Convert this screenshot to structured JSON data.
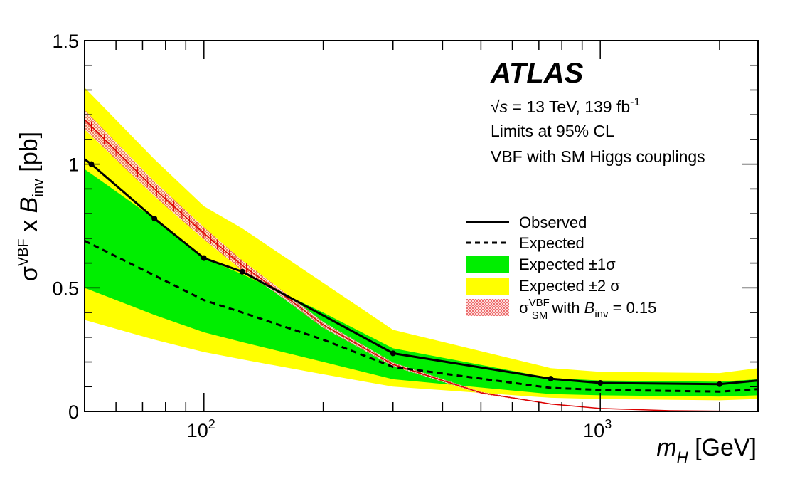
{
  "chart_data": {
    "type": "line",
    "xscale": "log",
    "xlim": [
      50,
      2500
    ],
    "ylim": [
      0,
      1.5
    ],
    "grid": false,
    "legend_position": "center-right",
    "x_tick_labels": [
      {
        "base": "10",
        "exp": "2",
        "value": 100
      },
      {
        "base": "10",
        "exp": "3",
        "value": 1000
      }
    ],
    "y_tick_labels": [
      {
        "label": "0",
        "value": 0
      },
      {
        "label": "0.5",
        "value": 0.5
      },
      {
        "label": "1",
        "value": 1
      },
      {
        "label": "1.5",
        "value": 1.5
      }
    ],
    "xlabel": {
      "var": "m",
      "sub": "H",
      "unit": " [GeV]"
    },
    "ylabel": {
      "sigma": "σ",
      "sup": "VBF",
      "times": " x ",
      "b": "B",
      "sub": "inv",
      "unit": " [pb]"
    },
    "atlas_label": "ATLAS",
    "info": {
      "sqrt": "√",
      "s": "s",
      "energy": " = 13 TeV, 139 fb",
      "energy_sup": "-1",
      "line2": "Limits at 95% CL",
      "line3": "VBF with SM Higgs couplings"
    },
    "legend": {
      "observed": "Observed",
      "expected": "Expected",
      "band1": "Expected ±1σ",
      "band2": "Expected ±2 σ",
      "sm_sigma": "σ",
      "sm_sup": "VBF",
      "sm_sub": "SM",
      "sm_with": " with ",
      "sm_b": "B",
      "sm_bsub": "inv",
      "sm_val": " = 0.15"
    },
    "colors": {
      "band1": "#00ee00",
      "band2": "#ffff00",
      "observed": "#000000",
      "expected": "#000000",
      "sm_line": "#dd0000",
      "sm_band": "#ff9999"
    },
    "series": [
      {
        "name": "Observed",
        "x": [
          50,
          52,
          75,
          100,
          125,
          300,
          750,
          1000,
          2000,
          2500
        ],
        "y": [
          1.02,
          1.0,
          0.78,
          0.62,
          0.565,
          0.235,
          0.132,
          0.115,
          0.11,
          0.125
        ]
      },
      {
        "name": "Expected",
        "x": [
          50,
          75,
          100,
          125,
          200,
          300,
          750,
          1000,
          2000,
          2500
        ],
        "y": [
          0.69,
          0.55,
          0.45,
          0.4,
          0.29,
          0.18,
          0.095,
          0.087,
          0.08,
          0.09
        ]
      },
      {
        "name": "Expected ±1σ",
        "x": [
          50,
          75,
          100,
          125,
          200,
          300,
          750,
          1000,
          2000,
          2500
        ],
        "low": [
          0.5,
          0.39,
          0.32,
          0.28,
          0.2,
          0.13,
          0.07,
          0.065,
          0.06,
          0.065
        ],
        "high": [
          0.98,
          0.78,
          0.62,
          0.555,
          0.4,
          0.255,
          0.135,
          0.125,
          0.12,
          0.13
        ]
      },
      {
        "name": "Expected ±2 σ",
        "x": [
          50,
          75,
          100,
          125,
          200,
          300,
          750,
          1000,
          2000,
          2500
        ],
        "low": [
          0.37,
          0.29,
          0.24,
          0.21,
          0.15,
          0.1,
          0.055,
          0.05,
          0.045,
          0.05
        ],
        "high": [
          1.31,
          1.02,
          0.83,
          0.74,
          0.52,
          0.33,
          0.175,
          0.16,
          0.155,
          0.175
        ]
      },
      {
        "name": "σVBF SM with Binv = 0.15",
        "x": [
          50,
          75,
          100,
          125,
          150,
          200,
          300,
          500,
          750,
          1000,
          1500,
          2000,
          2500
        ],
        "y": [
          1.18,
          0.9,
          0.72,
          0.59,
          0.5,
          0.35,
          0.19,
          0.075,
          0.03,
          0.012,
          0.003,
          0.001,
          0.0005
        ],
        "uncertainty": [
          0.04,
          0.03,
          0.025,
          0.02,
          0.015,
          0.012,
          0.008,
          0.004,
          0.002,
          0.001,
          0.0005,
          0.0002,
          0.0001
        ]
      }
    ]
  }
}
